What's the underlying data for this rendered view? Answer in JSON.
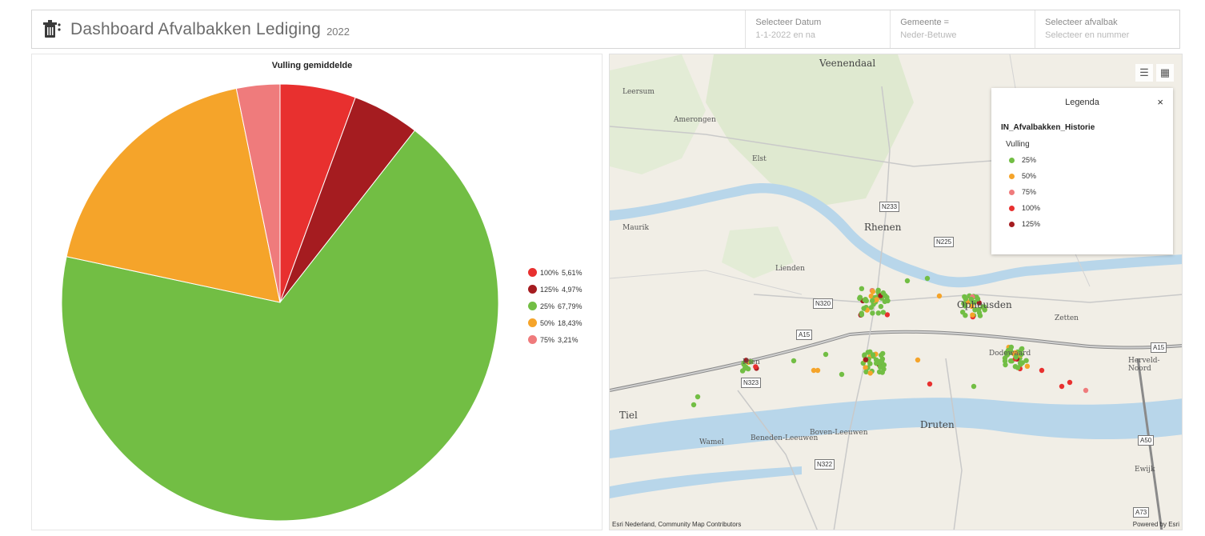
{
  "header": {
    "title": "Dashboard Afvalbakken Lediging",
    "subtitle": "2022",
    "selectors": [
      {
        "label": "Selecteer Datum",
        "value": "1-1-2022 en na"
      },
      {
        "label": "Gemeente =",
        "value": "Neder-Betuwe"
      },
      {
        "label": "Selecteer afvalbak",
        "value": "Selecteer en nummer"
      }
    ]
  },
  "chart_data": {
    "type": "pie",
    "title": "Vulling gemiddelde",
    "slices": [
      {
        "label": "100%",
        "value": 5.61,
        "display": "5,61%",
        "color": "#e8302f"
      },
      {
        "label": "125%",
        "value": 4.97,
        "display": "4,97%",
        "color": "#a51c20"
      },
      {
        "label": "25%",
        "value": 67.79,
        "display": "67,79%",
        "color": "#72be44"
      },
      {
        "label": "50%",
        "value": 18.43,
        "display": "18,43%",
        "color": "#f5a42a"
      },
      {
        "label": "75%",
        "value": 3.21,
        "display": "3,21%",
        "color": "#ef7b7c"
      }
    ],
    "legend_position": "right"
  },
  "map": {
    "places": [
      {
        "name": "Veenendaal",
        "big": true
      },
      {
        "name": "Leersum"
      },
      {
        "name": "Amerongen"
      },
      {
        "name": "Elst"
      },
      {
        "name": "Maurik"
      },
      {
        "name": "Rhenen"
      },
      {
        "name": "Lienden"
      },
      {
        "name": "Opheusden"
      },
      {
        "name": "Zetten"
      },
      {
        "name": "Dodewaard"
      },
      {
        "name": "Hien"
      },
      {
        "name": "Herveld-Noord"
      },
      {
        "name": "Tiel",
        "big": true
      },
      {
        "name": "Wamel"
      },
      {
        "name": "Beneden-Leeuwen"
      },
      {
        "name": "Boven-Leeuwen"
      },
      {
        "name": "Druten"
      },
      {
        "name": "Ewijk"
      }
    ],
    "roads": [
      "N233",
      "N225",
      "N320",
      "A15",
      "A15",
      "N323",
      "N322",
      "A50",
      "A73"
    ],
    "attribution_left": "Esri Nederland, Community Map Contributors",
    "attribution_right": "Powered by Esri",
    "buttons": [
      "legend-list-icon",
      "basemap-grid-icon"
    ]
  },
  "legend_panel": {
    "title": "Legenda",
    "close": "×",
    "layer": "IN_Afvalbakken_Historie",
    "field": "Vulling",
    "items": [
      {
        "label": "25%",
        "color": "#72be44"
      },
      {
        "label": "50%",
        "color": "#f5a42a"
      },
      {
        "label": "75%",
        "color": "#ef7b7c"
      },
      {
        "label": "100%",
        "color": "#e8302f"
      },
      {
        "label": "125%",
        "color": "#a51c20"
      }
    ]
  },
  "colors": {
    "green": "#72be44",
    "orange": "#f5a42a",
    "pink": "#ef7b7c",
    "red": "#e8302f",
    "darkred": "#a51c20"
  }
}
